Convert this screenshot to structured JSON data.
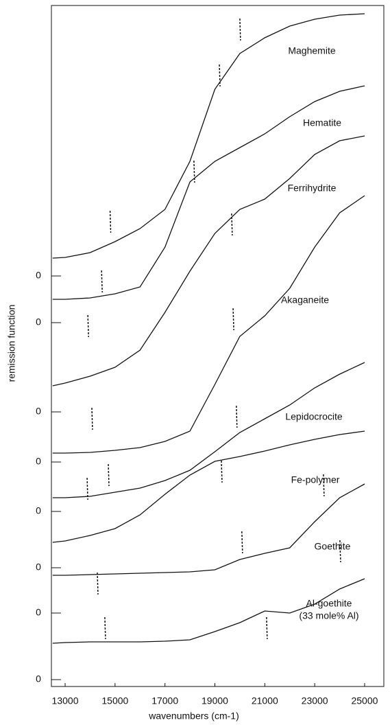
{
  "chart_data": {
    "type": "line",
    "x_label": "wavenumbers (cm-1)",
    "y_label": "remission function",
    "x": [
      12500,
      13000,
      14000,
      15000,
      16000,
      17000,
      18000,
      19000,
      20000,
      21000,
      22000,
      23000,
      24000,
      25000
    ],
    "xlim": [
      12450,
      25770
    ],
    "xticks": [
      13000,
      15000,
      17000,
      19000,
      21000,
      23000,
      25000
    ],
    "ylim": [
      0,
      992
    ],
    "yticks": [
      {
        "value": 598,
        "label": "0"
      },
      {
        "value": 530,
        "label": "0"
      },
      {
        "value": 400,
        "label": "0"
      },
      {
        "value": 327,
        "label": "0"
      },
      {
        "value": 255,
        "label": "0"
      },
      {
        "value": 173,
        "label": "0"
      },
      {
        "value": 107,
        "label": "0"
      },
      {
        "value": 10,
        "label": "0"
      }
    ],
    "series": [
      {
        "name": "Maghemite",
        "color": "#111111",
        "values": [
          624,
          625,
          632,
          648,
          667,
          695,
          765,
          870,
          922,
          945,
          962,
          972,
          978,
          980
        ]
      },
      {
        "name": "Hematite",
        "color": "#111111",
        "values": [
          564,
          564,
          566,
          572,
          582,
          640,
          735,
          765,
          785,
          805,
          830,
          852,
          867,
          875
        ]
      },
      {
        "name": "Ferrihydrite",
        "color": "#111111",
        "values": [
          438,
          442,
          452,
          465,
          490,
          545,
          605,
          660,
          695,
          710,
          740,
          775,
          795,
          802
        ]
      },
      {
        "name": "Akaganeite",
        "color": "#111111",
        "values": [
          340,
          340,
          341,
          344,
          348,
          357,
          372,
          440,
          510,
          540,
          580,
          640,
          690,
          715
        ]
      },
      {
        "name": "Lepidocrocite",
        "color": "#111111",
        "values": [
          275,
          275,
          277,
          283,
          289,
          300,
          315,
          342,
          370,
          390,
          410,
          435,
          455,
          472
        ]
      },
      {
        "name": "Fe-polymer",
        "color": "#111111",
        "values": [
          210,
          212,
          220,
          230,
          250,
          280,
          308,
          328,
          335,
          343,
          352,
          360,
          367,
          372
        ]
      },
      {
        "name": "Goethite",
        "color": "#111111",
        "values": [
          162,
          162,
          163,
          164,
          165,
          166,
          167,
          170,
          185,
          194,
          202,
          240,
          275,
          295
        ]
      },
      {
        "name": "Al-goethite",
        "color": "#111111",
        "values": [
          63,
          64,
          65,
          65,
          65,
          66,
          68,
          80,
          93,
          110,
          107,
          120,
          142,
          157
        ]
      }
    ],
    "label_note": "(33 mole% Al)",
    "band_markers": {
      "x": [
        14800,
        19180,
        20000,
        18160,
        14460,
        19670,
        13910,
        19730,
        14070,
        19860,
        14730,
        19260,
        13880,
        23350,
        14290,
        20080,
        21070,
        24010,
        14590
      ],
      "y": [
        677,
        890,
        957,
        750,
        590,
        673,
        525,
        535,
        390,
        393,
        308,
        313,
        288,
        293,
        150,
        210,
        85,
        197,
        85
      ]
    }
  }
}
